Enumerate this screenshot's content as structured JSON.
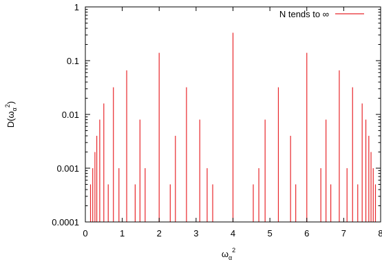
{
  "chart_data": {
    "type": "bar",
    "style": "impulses",
    "xlabel_main": "ω",
    "xlabel_sub": "α",
    "xlabel_sup": "2",
    "ylabel_pre": "D(ω",
    "ylabel_sub": "α",
    "ylabel_sup": "2",
    "ylabel_post": ")",
    "xlim": [
      0,
      8
    ],
    "ylim": [
      0.0001,
      1
    ],
    "yscale": "log",
    "x_ticks": [
      0,
      1,
      2,
      3,
      4,
      5,
      6,
      7,
      8
    ],
    "x_tick_labels": [
      "0",
      "1",
      "2",
      "3",
      "4",
      "5",
      "6",
      "7",
      "8"
    ],
    "y_ticks": [
      0.0001,
      0.001,
      0.01,
      0.1,
      1
    ],
    "y_tick_labels": [
      "0.0001",
      "0.001",
      "0.01",
      "0.1",
      "1"
    ],
    "grid": false,
    "legend_position": "top-right",
    "series": [
      {
        "name": "N tends to ∞",
        "color": "#e8262a",
        "x": [
          0.14,
          0.2,
          0.26,
          0.31,
          0.39,
          0.5,
          0.62,
          0.76,
          0.91,
          1.12,
          1.35,
          1.48,
          1.62,
          2.0,
          2.3,
          2.44,
          2.74,
          3.1,
          3.3,
          3.45,
          4.0,
          4.55,
          4.7,
          4.87,
          5.23,
          5.56,
          5.7,
          6.0,
          6.38,
          6.52,
          6.65,
          6.88,
          7.09,
          7.24,
          7.38,
          7.5,
          7.6,
          7.68,
          7.74,
          7.8,
          7.86
        ],
        "values": [
          0.0005,
          0.001,
          0.002,
          0.004,
          0.008,
          0.016,
          0.0005,
          0.032,
          0.001,
          0.066,
          0.0005,
          0.008,
          0.001,
          0.14,
          0.0005,
          0.004,
          0.032,
          0.008,
          0.001,
          0.0005,
          0.33,
          0.0005,
          0.001,
          0.008,
          0.032,
          0.004,
          0.0005,
          0.14,
          0.001,
          0.008,
          0.0005,
          0.066,
          0.001,
          0.032,
          0.0005,
          0.016,
          0.008,
          0.004,
          0.002,
          0.001,
          0.0005
        ]
      }
    ]
  }
}
